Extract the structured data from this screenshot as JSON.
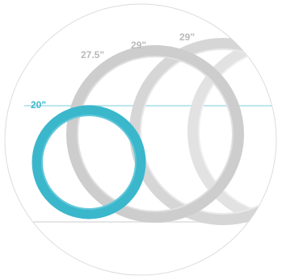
{
  "figure": {
    "labels": {
      "size_small": "20\"",
      "size_2": "27.5\"",
      "size_3": "29\"",
      "size_4": "29\""
    },
    "colors": {
      "highlight": "#3bb7cc",
      "guide_line": "#bde6ee",
      "ring_gray": "#cdcdcd",
      "ring_gray_light": "#e2e2e2",
      "label_gray": "#b9b9b9",
      "frame": "#dcdcdc",
      "background": "#ffffff"
    }
  }
}
